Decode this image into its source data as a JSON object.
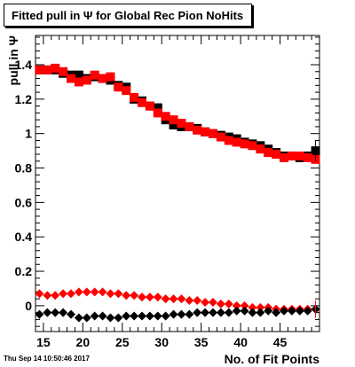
{
  "chart_data": {
    "type": "scatter",
    "title": "Fitted pull in Ψ  for Global Rec Pion NoHits",
    "xlabel": "No. of Fit Points",
    "ylabel": "pull in Ψ",
    "xlim": [
      14,
      50
    ],
    "ylim": [
      -0.15,
      1.57
    ],
    "x_ticks": [
      15,
      20,
      25,
      30,
      35,
      40,
      45
    ],
    "y_ticks": [
      0,
      0.2,
      0.4,
      0.6,
      0.8,
      1,
      1.2,
      1.4
    ],
    "x_tick_labels": [
      "15",
      "20",
      "25",
      "30",
      "35",
      "40",
      "45"
    ],
    "y_tick_labels": [
      "0",
      "0.2",
      "0.4",
      "0.6",
      "0.8",
      "1",
      "1.2",
      "1.4"
    ],
    "grid": false,
    "legend": "none",
    "x": [
      14.5,
      15.5,
      16.5,
      17.5,
      18.5,
      19.5,
      20.5,
      21.5,
      22.5,
      23.5,
      24.5,
      25.5,
      26.5,
      27.5,
      28.5,
      29.5,
      30.5,
      31.5,
      32.5,
      33.5,
      34.5,
      35.5,
      36.5,
      37.5,
      38.5,
      39.5,
      40.5,
      41.5,
      42.5,
      43.5,
      44.5,
      45.5,
      46.5,
      47.5,
      48.5,
      49.5
    ],
    "series": [
      {
        "color": "#000000",
        "marker": "square",
        "values": [
          1.37,
          1.37,
          1.37,
          1.35,
          1.34,
          1.34,
          1.32,
          1.33,
          1.32,
          1.31,
          1.28,
          1.27,
          1.2,
          1.19,
          1.16,
          1.15,
          1.08,
          1.05,
          1.04,
          1.04,
          1.03,
          1.01,
          1.0,
          0.99,
          0.98,
          0.97,
          0.95,
          0.94,
          0.93,
          0.91,
          0.89,
          0.87,
          0.87,
          0.86,
          0.87,
          0.9
        ]
      },
      {
        "color": "#ff0000",
        "marker": "square",
        "values": [
          1.37,
          1.37,
          1.38,
          1.36,
          1.32,
          1.3,
          1.31,
          1.34,
          1.32,
          1.33,
          1.27,
          1.25,
          1.21,
          1.18,
          1.16,
          1.12,
          1.1,
          1.08,
          1.06,
          1.04,
          1.02,
          1.01,
          1.0,
          0.98,
          0.96,
          0.95,
          0.94,
          0.93,
          0.91,
          0.89,
          0.88,
          0.86,
          0.87,
          0.87,
          0.86,
          0.85
        ]
      },
      {
        "color": "#ff0000",
        "marker": "diamond",
        "values": [
          0.07,
          0.06,
          0.06,
          0.07,
          0.07,
          0.08,
          0.08,
          0.08,
          0.08,
          0.07,
          0.07,
          0.06,
          0.06,
          0.05,
          0.05,
          0.05,
          0.04,
          0.04,
          0.04,
          0.03,
          0.03,
          0.02,
          0.02,
          0.01,
          0.01,
          0.0,
          0.0,
          -0.01,
          -0.01,
          -0.01,
          -0.02,
          -0.02,
          -0.02,
          -0.02,
          -0.02,
          -0.02
        ]
      },
      {
        "color": "#000000",
        "marker": "diamond",
        "values": [
          -0.05,
          -0.04,
          -0.04,
          -0.04,
          -0.05,
          -0.07,
          -0.07,
          -0.06,
          -0.06,
          -0.07,
          -0.07,
          -0.06,
          -0.06,
          -0.06,
          -0.06,
          -0.06,
          -0.06,
          -0.05,
          -0.05,
          -0.05,
          -0.04,
          -0.04,
          -0.04,
          -0.04,
          -0.04,
          -0.03,
          -0.03,
          -0.04,
          -0.04,
          -0.03,
          -0.04,
          -0.03,
          -0.03,
          -0.03,
          -0.03,
          -0.02
        ]
      }
    ]
  },
  "footer": {
    "timestamp": "Thu Sep 14 10:50:46 2017"
  }
}
